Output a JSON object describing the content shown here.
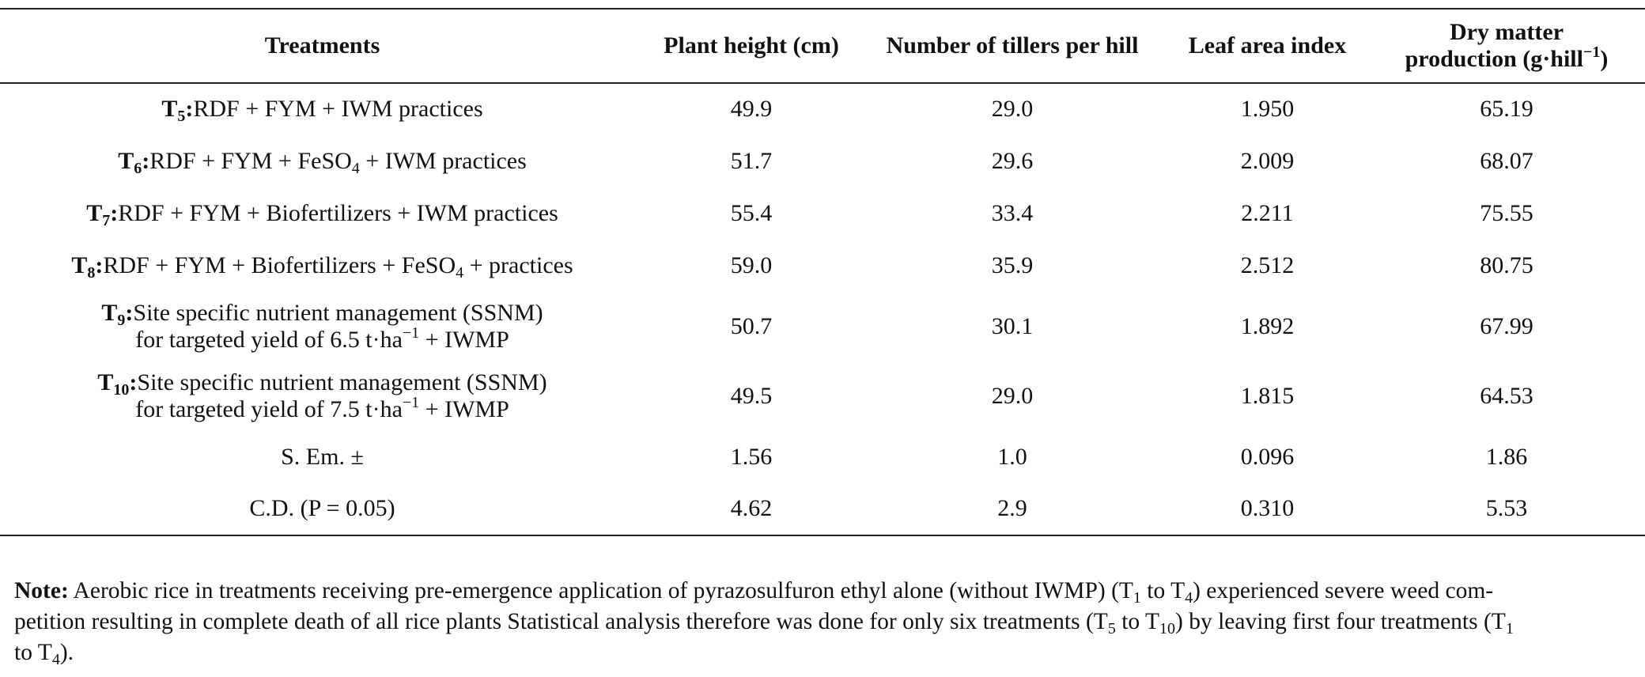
{
  "header": {
    "col0": "Treatments",
    "col1": "Plant height (cm)",
    "col2": "Number of tillers per hill",
    "col3": "Leaf area index",
    "col4_line1": "Dry matter",
    "col4_line2_pre": "production (g·hill",
    "col4_line2_sup": "−1",
    "col4_line2_post": ")"
  },
  "rows": [
    {
      "code": "T",
      "code_sub": "5",
      "sep": ":",
      "desc": "RDF + FYM + IWM practices",
      "height": "49.9",
      "tillers": "29.0",
      "lai": "1.950",
      "dm": "65.19"
    },
    {
      "code": "T",
      "code_sub": "6",
      "sep": ":",
      "desc_pre": "RDF + FYM + FeSO",
      "desc_sub": "4",
      "desc_post": " + IWM practices",
      "height": "51.7",
      "tillers": "29.6",
      "lai": "2.009",
      "dm": "68.07"
    },
    {
      "code": "T",
      "code_sub": "7",
      "sep": ":",
      "desc": "RDF + FYM + Biofertilizers + IWM practices",
      "height": "55.4",
      "tillers": "33.4",
      "lai": "2.211",
      "dm": "75.55"
    },
    {
      "code": "T",
      "code_sub": "8",
      "sep": ":",
      "desc_pre": "RDF + FYM + Biofertilizers + FeSO",
      "desc_sub": "4",
      "desc_post": " + practices",
      "height": "59.0",
      "tillers": "35.9",
      "lai": "2.512",
      "dm": "80.75"
    },
    {
      "code": "T",
      "code_sub": "9",
      "sep": ":",
      "desc_line1": "Site specific nutrient management (SSNM)",
      "desc_line2_pre": "for targeted yield of 6.5 t·ha",
      "desc_line2_sup": "−1",
      "desc_line2_post": " + IWMP",
      "height": "50.7",
      "tillers": "30.1",
      "lai": "1.892",
      "dm": "67.99"
    },
    {
      "code": "T",
      "code_sub": "10",
      "sep": ":",
      "desc_line1": "Site specific nutrient management (SSNM)",
      "desc_line2_pre": "for targeted yield of 7.5 t·ha",
      "desc_line2_sup": "−1",
      "desc_line2_post": " + IWMP",
      "height": "49.5",
      "tillers": "29.0",
      "lai": "1.815",
      "dm": "64.53"
    }
  ],
  "stats": [
    {
      "label": "S. Em. ±",
      "height": "1.56",
      "tillers": "1.0",
      "lai": "0.096",
      "dm": "1.86"
    },
    {
      "label": "C.D. (P = 0.05)",
      "height": "4.62",
      "tillers": "2.9",
      "lai": "0.310",
      "dm": "5.53"
    }
  ],
  "note": {
    "label": "Note:",
    "l1a": " Aerobic rice in treatments receiving pre-emergence application of pyrazosulfuron ethyl alone (without IWMP) (T",
    "l1b": "1",
    "l1c": " to T",
    "l1d": "4",
    "l1e": ") experienced severe weed com-",
    "l2a": "petition resulting in complete death of all rice plants Statistical analysis therefore was done for only six treatments (T",
    "l2b": "5",
    "l2c": " to T",
    "l2d": "10",
    "l2e": ") by leaving first four treatments (T",
    "l2f": "1",
    "l3a": "to T",
    "l3b": "4",
    "l3c": ")."
  }
}
